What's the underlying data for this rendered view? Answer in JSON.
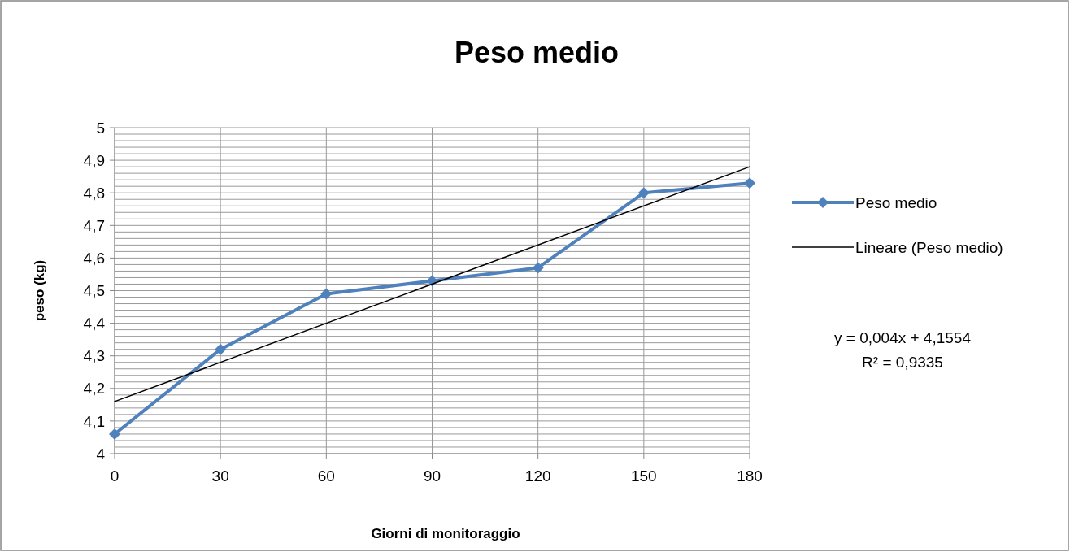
{
  "chart_data": {
    "type": "line",
    "title": "Peso medio",
    "xlabel": "Giorni di monitoraggio",
    "ylabel": "peso (kg)",
    "x": [
      0,
      30,
      60,
      90,
      120,
      150,
      180
    ],
    "series": [
      {
        "name": "Peso medio",
        "color": "#4f81bd",
        "values": [
          4.06,
          4.32,
          4.49,
          4.53,
          4.57,
          4.8,
          4.83
        ],
        "marker": "diamond"
      },
      {
        "name": "Lineare (Peso medio)",
        "color": "#000000",
        "type": "line",
        "x": [
          0,
          180
        ],
        "values": [
          4.16,
          4.88
        ],
        "marker": "none"
      }
    ],
    "xlim": [
      0,
      180
    ],
    "xticks": [
      0,
      30,
      60,
      90,
      120,
      150,
      180
    ],
    "ylim": [
      4,
      5
    ],
    "yticks": [
      4,
      {
        "value": 4.02,
        "label": null
      },
      {
        "value": 4.04,
        "label": null
      },
      {
        "value": 4.06,
        "label": null
      },
      {
        "value": 4.08,
        "label": null
      },
      {
        "value": 4.1,
        "label": "4,1"
      },
      {
        "value": 4.12,
        "label": null
      },
      {
        "value": 4.14,
        "label": null
      },
      {
        "value": 4.16,
        "label": null
      },
      {
        "value": 4.18,
        "label": null
      },
      {
        "value": 4.2,
        "label": "4,2"
      },
      {
        "value": 4.22,
        "label": null
      },
      {
        "value": 4.24,
        "label": null
      },
      {
        "value": 4.26,
        "label": null
      },
      {
        "value": 4.28,
        "label": null
      },
      {
        "value": 4.3,
        "label": "4,3"
      },
      {
        "value": 4.32,
        "label": null
      },
      {
        "value": 4.34,
        "label": null
      },
      {
        "value": 4.36,
        "label": null
      },
      {
        "value": 4.38,
        "label": null
      },
      {
        "value": 4.4,
        "label": "4,4"
      },
      {
        "value": 4.42,
        "label": null
      },
      {
        "value": 4.44,
        "label": null
      },
      {
        "value": 4.46,
        "label": null
      },
      {
        "value": 4.48,
        "label": null
      },
      {
        "value": 4.5,
        "label": "4,5"
      },
      {
        "value": 4.52,
        "label": null
      },
      {
        "value": 4.54,
        "label": null
      },
      {
        "value": 4.56,
        "label": null
      },
      {
        "value": 4.58,
        "label": null
      },
      {
        "value": 4.6,
        "label": "4,6"
      },
      {
        "value": 4.62,
        "label": null
      },
      {
        "value": 4.64,
        "label": null
      },
      {
        "value": 4.66,
        "label": null
      },
      {
        "value": 4.68,
        "label": null
      },
      {
        "value": 4.7,
        "label": "4,7"
      },
      {
        "value": 4.72,
        "label": null
      },
      {
        "value": 4.74,
        "label": null
      },
      {
        "value": 4.76,
        "label": null
      },
      {
        "value": 4.78,
        "label": null
      },
      {
        "value": 4.8,
        "label": "4,8"
      },
      {
        "value": 4.82,
        "label": null
      },
      {
        "value": 4.84,
        "label": null
      },
      {
        "value": 4.86,
        "label": null
      },
      {
        "value": 4.88,
        "label": null
      },
      {
        "value": 4.9,
        "label": "4,9"
      },
      {
        "value": 4.92,
        "label": null
      },
      {
        "value": 4.94,
        "label": null
      },
      {
        "value": 4.96,
        "label": null
      },
      {
        "value": 4.98,
        "label": null
      },
      5
    ],
    "grid": true,
    "legend": "right",
    "line_style": "solid",
    "annotations": [
      "y = 0,004x + 4,1554",
      "R² = 0,9335"
    ]
  }
}
